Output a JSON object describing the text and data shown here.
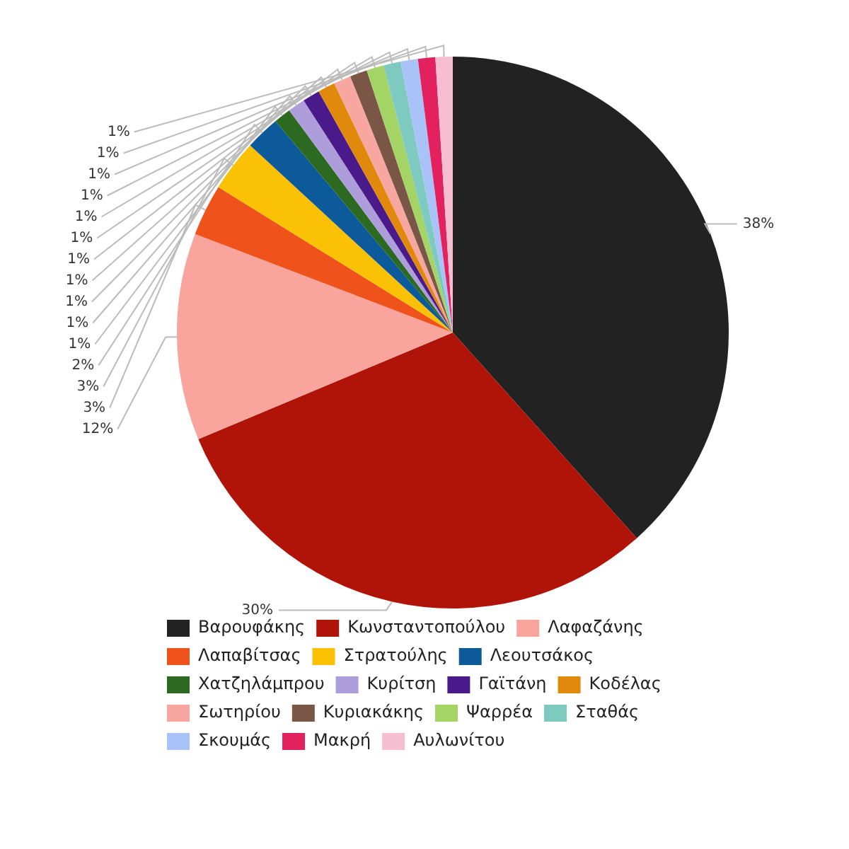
{
  "chart_data": {
    "type": "pie",
    "categories": [
      "Βαρουφάκης",
      "Κωνσταντοπούλου",
      "Λαφαζάνης",
      "Λαπαβίτσας",
      "Στρατούλης",
      "Λεουτσάκος",
      "Χατζηλάμπρου",
      "Κυρίτση",
      "Γαϊτάνη",
      "Κοδέλας",
      "Σωτηρίου",
      "Κυριακάκης",
      "Ψαρρέα",
      "Σταθάς",
      "Σκουμάς",
      "Μακρή",
      "Αυλωνίτου"
    ],
    "values": [
      38,
      30,
      12,
      3,
      3,
      2,
      1,
      1,
      1,
      1,
      1,
      1,
      1,
      1,
      1,
      1,
      1
    ],
    "colors": [
      "#222222",
      "#b01308",
      "#f9a59d",
      "#f0521c",
      "#fbc105",
      "#0d5a9a",
      "#2b6a20",
      "#ad9ddb",
      "#4a1a8a",
      "#e0890c",
      "#f7a6a0",
      "#7a5646",
      "#a4d465",
      "#7fcac0",
      "#a9c2f7",
      "#e2215e",
      "#f7bed2"
    ],
    "value_labels": [
      "38%",
      "30%",
      "12%",
      "3%",
      "3%",
      "2%",
      "1%",
      "1%",
      "1%",
      "1%",
      "1%",
      "1%",
      "1%",
      "1%",
      "1%",
      "1%",
      "1%"
    ],
    "legend": "bottom"
  }
}
